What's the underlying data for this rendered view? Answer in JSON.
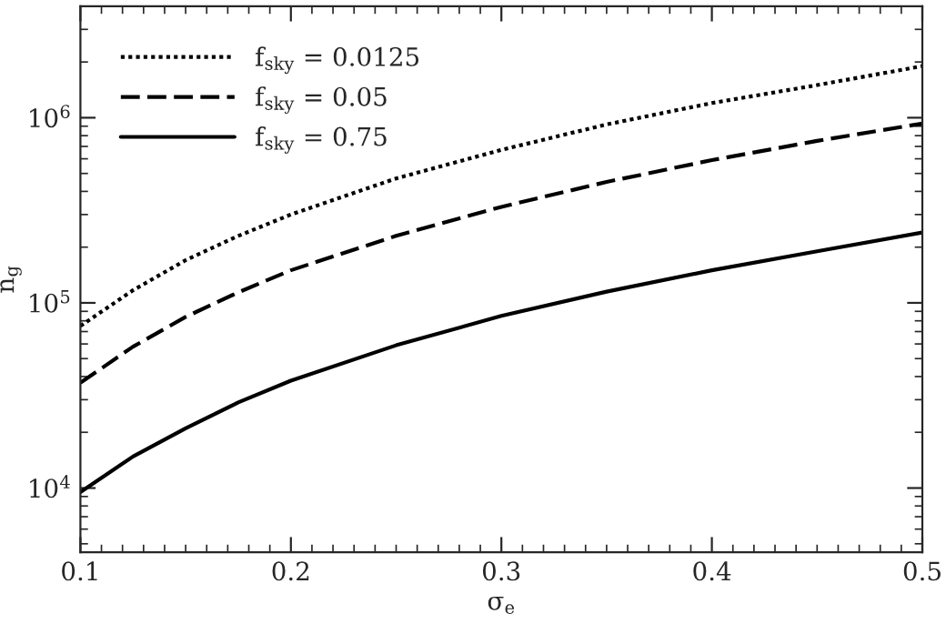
{
  "chart_data": {
    "type": "line",
    "xlabel": "σ$_{e}$",
    "ylabel": "n$_{g}$",
    "log": "y",
    "grid": false,
    "legend": "top left",
    "marker": "none",
    "xlim": [
      0.1,
      0.5
    ],
    "xticks": [
      0.1,
      0.2,
      0.3,
      0.4,
      0.5
    ],
    "ylim": [
      4500,
      4000000
    ],
    "yticks": [
      {
        "value": 10000,
        "label": "10$^{4}$"
      },
      {
        "value": 100000,
        "label": "10$^{5}$"
      },
      {
        "value": 1000000,
        "label": "10$^{6}$"
      }
    ],
    "x": [
      0.1,
      0.125,
      0.15,
      0.175,
      0.2,
      0.25,
      0.3,
      0.35,
      0.4,
      0.45,
      0.5
    ],
    "series": [
      {
        "name": "f$_{sky}$ = 0.0125",
        "color": "#000000",
        "line_style": "dotted",
        "values": [
          75000,
          117000,
          170000,
          230000,
          300000,
          470000,
          670000,
          920000,
          1200000,
          1500000,
          1900000
        ]
      },
      {
        "name": "f$_{sky}$ = 0.05",
        "color": "#000000",
        "line_style": "dashed",
        "values": [
          37000,
          58000,
          84000,
          114000,
          150000,
          230000,
          330000,
          450000,
          590000,
          750000,
          930000
        ]
      },
      {
        "name": "f$_{sky}$ = 0.75",
        "color": "#000000",
        "line_style": "solid",
        "values": [
          9500,
          14800,
          21000,
          29000,
          38000,
          59000,
          85000,
          115000,
          150000,
          190000,
          240000
        ]
      }
    ]
  }
}
